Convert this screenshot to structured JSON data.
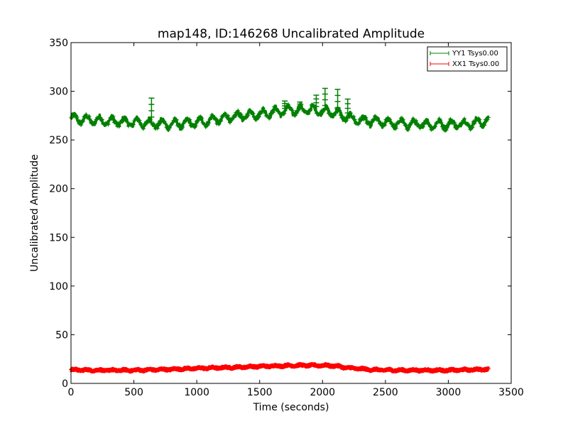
{
  "chart_data": {
    "type": "line",
    "title": "map148, ID:146268 Uncalibrated Amplitude",
    "xlabel": "Time (seconds)",
    "ylabel": "Uncalibrated Amplitude",
    "xlim": [
      0,
      3500
    ],
    "ylim": [
      0,
      350
    ],
    "xticks": [
      0,
      500,
      1000,
      1500,
      2000,
      2500,
      3000,
      3500
    ],
    "yticks": [
      0,
      50,
      100,
      150,
      200,
      250,
      300,
      350
    ],
    "xtick_labels": [
      "0",
      "500",
      "1000",
      "1500",
      "2000",
      "2500",
      "3000",
      "3500"
    ],
    "ytick_labels": [
      "0",
      "50",
      "100",
      "150",
      "200",
      "250",
      "300",
      "350"
    ],
    "grid": false,
    "legend_placement": "top-right",
    "marker": "+",
    "series": [
      {
        "name": "YY1 Tsys0.00",
        "color": "#008000",
        "x_range": [
          0,
          3320
        ],
        "oscillation_amplitude": 4,
        "oscillation_period_seconds": 100,
        "baseline": {
          "x": [
            0,
            200,
            500,
            800,
            1000,
            1200,
            1500,
            1700,
            1900,
            2000,
            2100,
            2200,
            2300,
            2500,
            2700,
            3000,
            3200,
            3320
          ],
          "y": [
            272,
            270,
            268,
            266,
            268,
            272,
            277,
            280,
            281,
            280,
            278,
            273,
            270,
            268,
            266,
            266,
            267,
            270
          ]
        },
        "spikes": [
          {
            "x": 640,
            "y": 293
          },
          {
            "x": 1700,
            "y": 290
          },
          {
            "x": 1820,
            "y": 289
          },
          {
            "x": 1950,
            "y": 296
          },
          {
            "x": 2020,
            "y": 303
          },
          {
            "x": 2120,
            "y": 302
          },
          {
            "x": 2200,
            "y": 292
          }
        ]
      },
      {
        "name": "XX1 Tsys0.00",
        "color": "#ff0000",
        "x_range": [
          0,
          3320
        ],
        "oscillation_amplitude": 0.6,
        "oscillation_period_seconds": 100,
        "baseline": {
          "x": [
            0,
            200,
            500,
            800,
            1000,
            1300,
            1500,
            1800,
            2000,
            2100,
            2200,
            2400,
            2600,
            3000,
            3320
          ],
          "y": [
            14,
            13.5,
            13.5,
            14.5,
            15.5,
            16.5,
            17.5,
            18.5,
            18.5,
            18,
            16,
            14,
            13.5,
            13.5,
            14.5
          ]
        },
        "spikes": []
      }
    ]
  }
}
